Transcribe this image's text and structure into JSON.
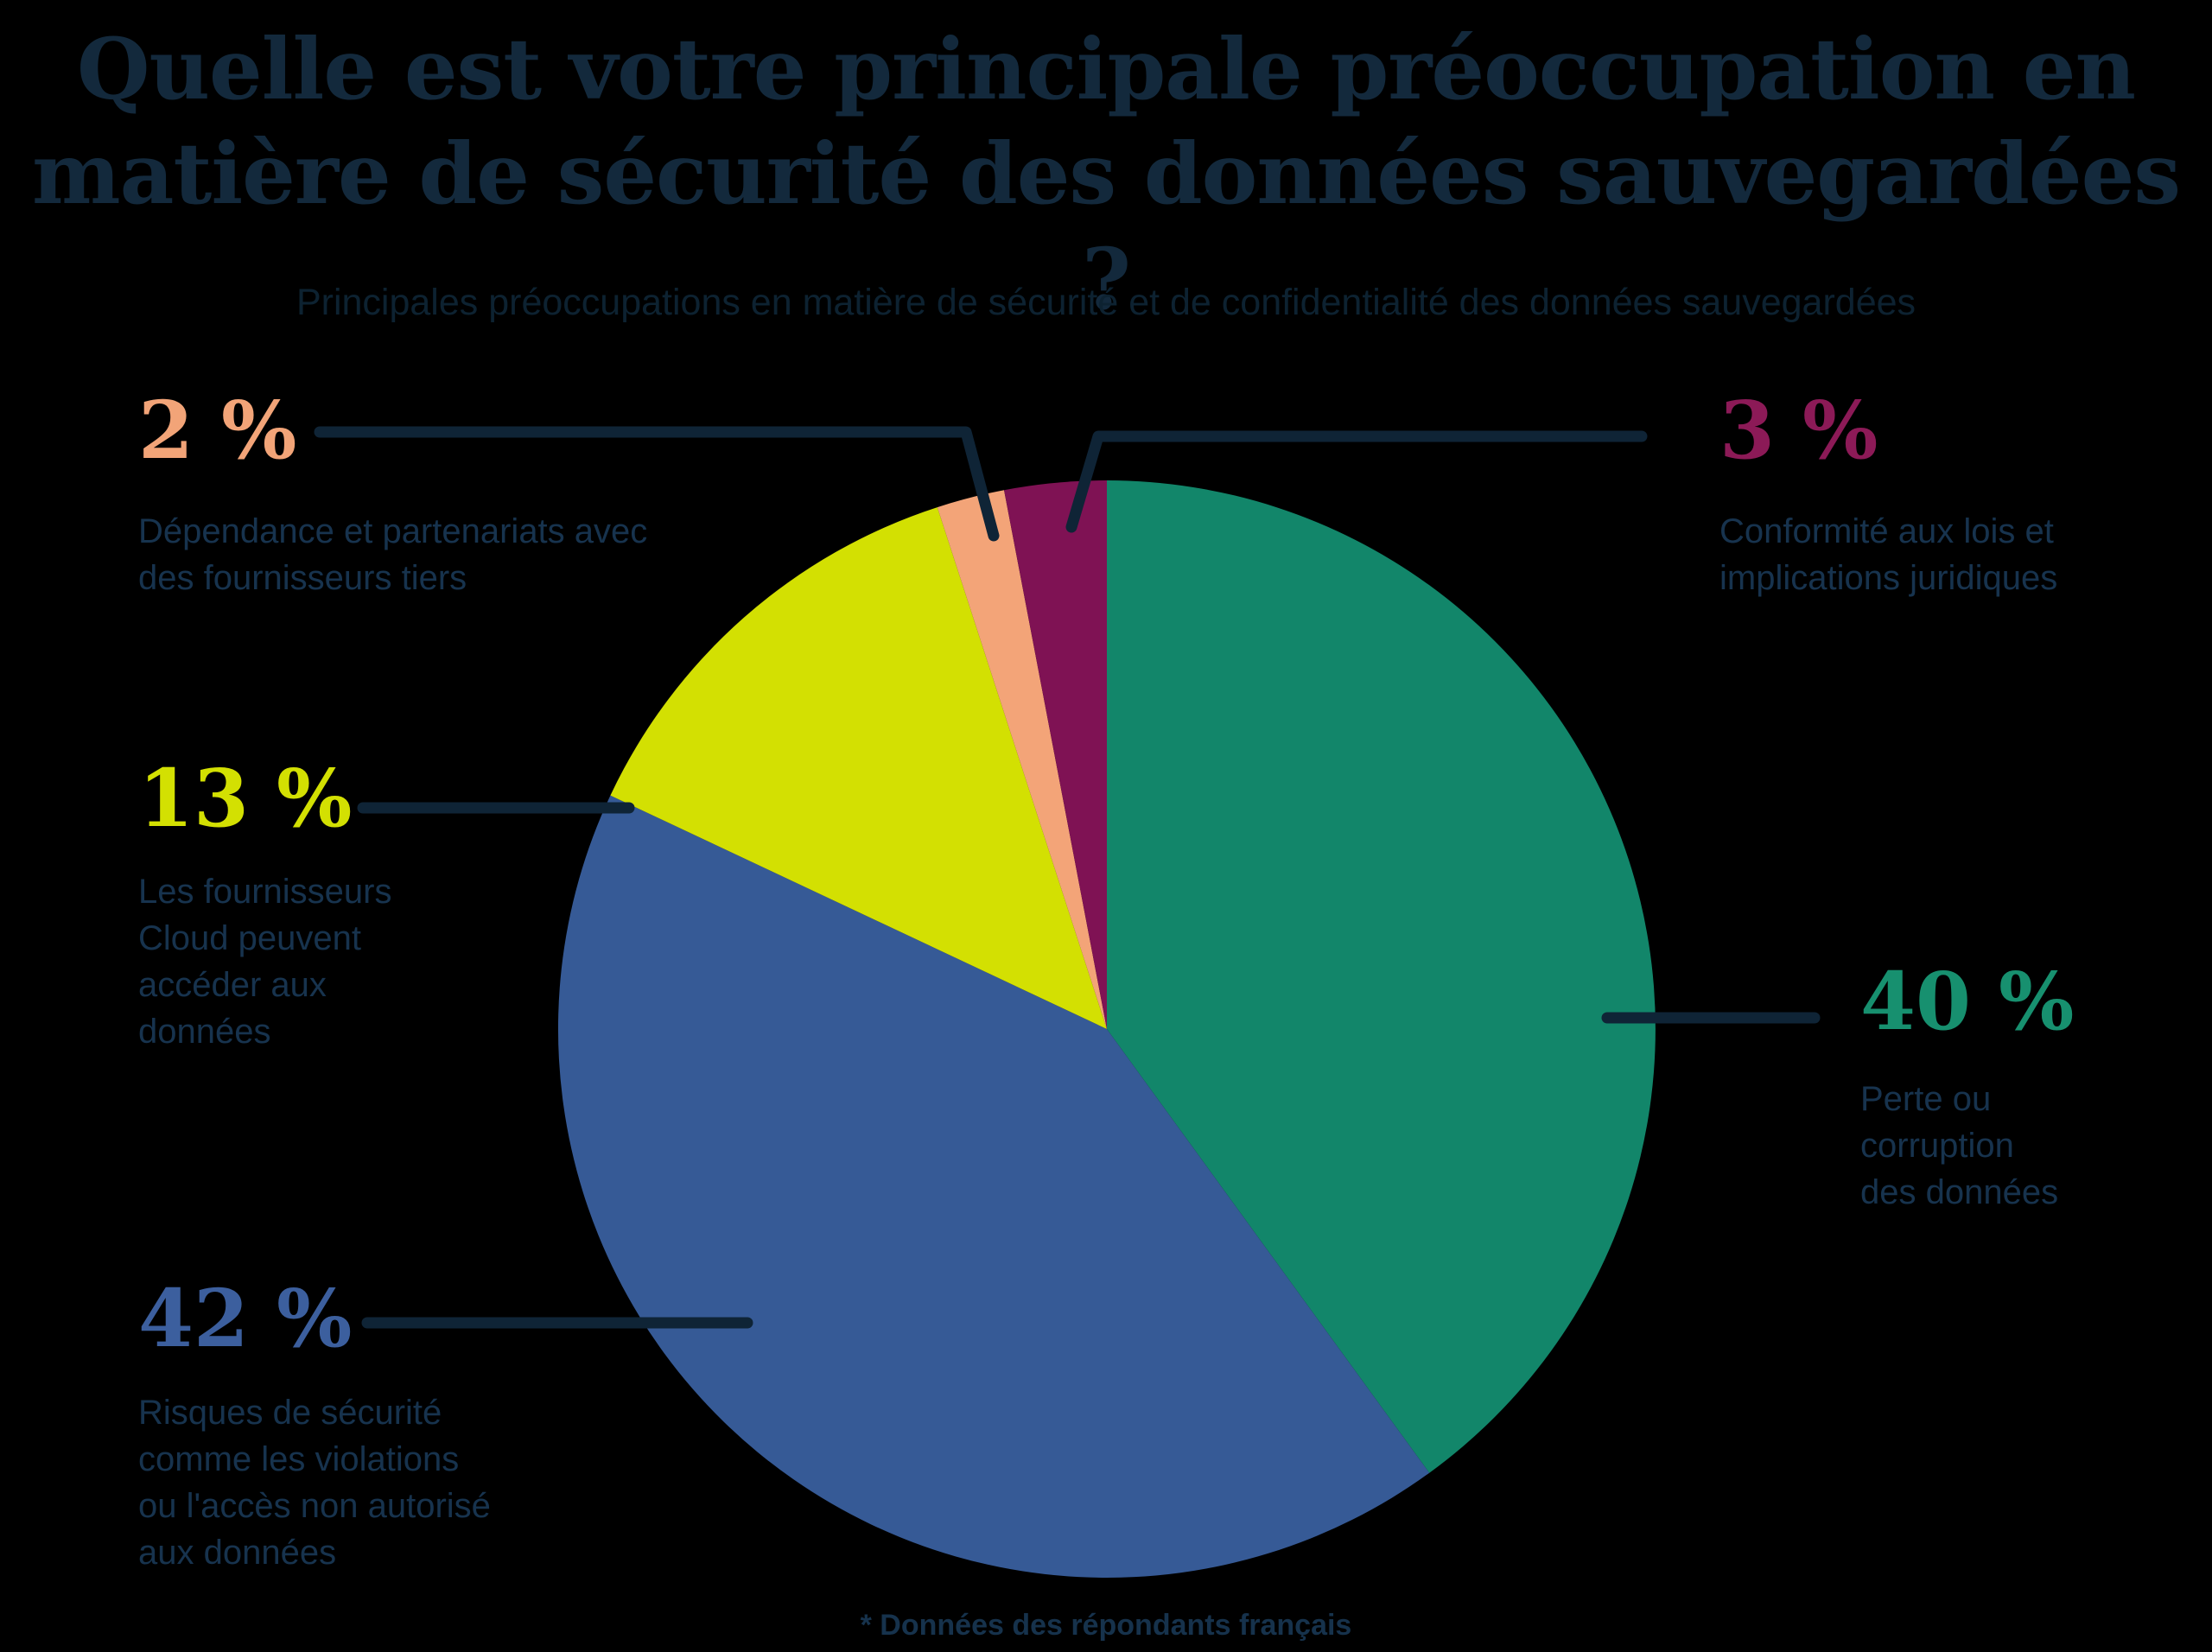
{
  "page": {
    "background": "#000000"
  },
  "chart_data": {
    "type": "pie",
    "title": "Quelle est votre principale préoccupation en\nmatière de sécurité des données sauvegardées ?",
    "subtitle": "Principales préoccupations en matière de sécurité et de confidentialité des données sauvegardées",
    "footnote": "* Données des répondants français",
    "start_angle": "top",
    "direction": "clockwise",
    "legend_position": "none",
    "labels_shown_as": "external callouts with leader lines",
    "slices": [
      {
        "id": "perte",
        "label": "Perte ou corruption des données",
        "value": 40,
        "color": "#12866A"
      },
      {
        "id": "risques",
        "label": "Risques de sécurité comme les violations ou l'accès non autorisé aux données",
        "value": 42,
        "color": "#365A96"
      },
      {
        "id": "fournisseurs",
        "label": "Les fournisseurs Cloud peuvent accéder aux données",
        "value": 13,
        "color": "#D3E002"
      },
      {
        "id": "dependance",
        "label": "Dépendance et partenariats avec des fournisseurs tiers",
        "value": 2,
        "color": "#F3A478"
      },
      {
        "id": "conformite",
        "label": "Conformité aux lois et implications juridiques",
        "value": 3,
        "color": "#7F1254"
      }
    ]
  },
  "callouts": {
    "c40": {
      "value_label": "40 %",
      "value_color": "#17906F",
      "desc": "Perte ou\ncorruption\ndes données"
    },
    "c42": {
      "value_label": "42 %",
      "value_color": "#3C5F9E",
      "desc": "Risques de sécurité\ncomme les violations\nou l'accès non autorisé\naux données"
    },
    "c13": {
      "value_label": "13 %",
      "value_color": "#D3E002",
      "desc": "Les fournisseurs\nCloud peuvent\naccéder aux\ndonnées"
    },
    "c2": {
      "value_label": "2 %",
      "value_color": "#F2A478",
      "desc": "Dépendance et partenariats avec\ndes fournisseurs tiers"
    },
    "c3": {
      "value_label": "3 %",
      "value_color": "#8C1A57",
      "desc": "Conformité aux lois et\nimplications juridiques"
    }
  },
  "colors": {
    "navy_title": "#13293C",
    "subtitle": "#0D2231",
    "desc_text": "#17334E",
    "leader_line": "#0F2436",
    "footnote": "#16324C"
  }
}
